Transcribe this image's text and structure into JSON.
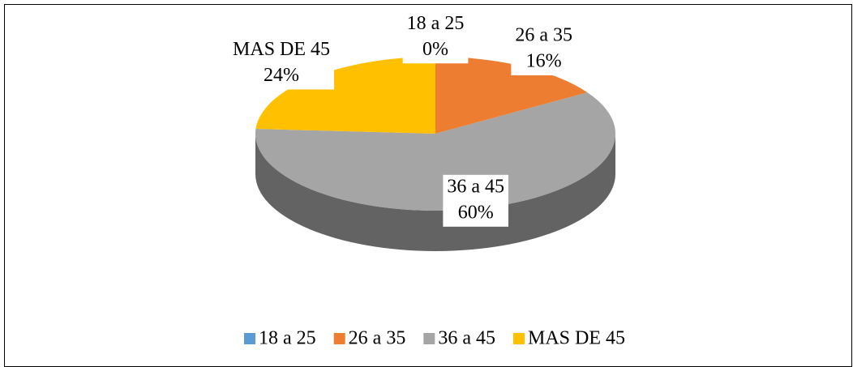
{
  "chart_data": {
    "type": "pie3d",
    "categories": [
      "18 a 25",
      "26 a 35",
      "36 a 45",
      "MAS DE 45"
    ],
    "values": [
      0,
      16,
      60,
      24
    ],
    "value_labels": [
      "0%",
      "16%",
      "60%",
      "24%"
    ],
    "colors": [
      "#5b9bd5",
      "#ed7d31",
      "#a5a5a5",
      "#ffc000"
    ],
    "legend": "bottom"
  }
}
